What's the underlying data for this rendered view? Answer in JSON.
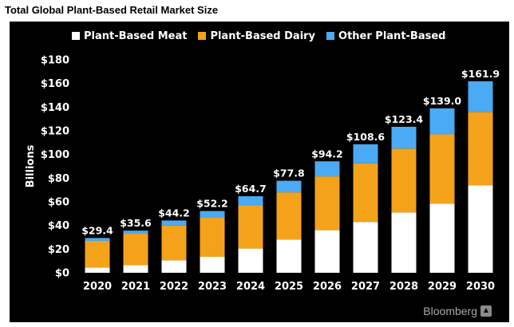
{
  "header": {
    "title": "Total Global Plant-Based Retail Market Size"
  },
  "source": {
    "label": "Bloomberg",
    "icon": "bloomberg-mark-icon"
  },
  "chart_data": {
    "type": "bar",
    "stacked": true,
    "title": "",
    "xlabel": "",
    "ylabel": "Billions",
    "ylim": [
      0,
      180
    ],
    "y_ticks": [
      0,
      20,
      40,
      60,
      80,
      100,
      120,
      140,
      160,
      180
    ],
    "y_tick_labels": [
      "$0",
      "$20",
      "$40",
      "$60",
      "$80",
      "$100",
      "$120",
      "$140",
      "$160",
      "$180"
    ],
    "grid": false,
    "legend_position": "top",
    "categories": [
      "2020",
      "2021",
      "2022",
      "2023",
      "2024",
      "2025",
      "2026",
      "2027",
      "2028",
      "2029",
      "2030"
    ],
    "series": [
      {
        "name": "Plant-Based Meat",
        "color": "#ffffff",
        "values": [
          4.5,
          6.5,
          10.5,
          13.5,
          20.5,
          28,
          36,
          43,
          51,
          58.5,
          74
        ]
      },
      {
        "name": "Plant-Based Dairy",
        "color": "#f5a21b",
        "values": [
          22.5,
          26.5,
          29.5,
          33,
          36.5,
          40,
          45.5,
          49.5,
          54,
          58.5,
          62
        ]
      },
      {
        "name": "Other Plant-Based",
        "color": "#4aaaf4",
        "values": [
          2.4,
          2.6,
          4.2,
          5.7,
          7.7,
          9.8,
          12.7,
          16.1,
          18.4,
          22,
          25.9
        ]
      }
    ],
    "totals": [
      29.4,
      35.6,
      44.2,
      52.2,
      64.7,
      77.8,
      94.2,
      108.6,
      123.4,
      139.0,
      161.9
    ],
    "total_labels": [
      "$29.4",
      "$35.6",
      "$44.2",
      "$52.2",
      "$64.7",
      "$77.8",
      "$94.2",
      "$108.6",
      "$123.4",
      "$139.0",
      "$161.9"
    ]
  }
}
